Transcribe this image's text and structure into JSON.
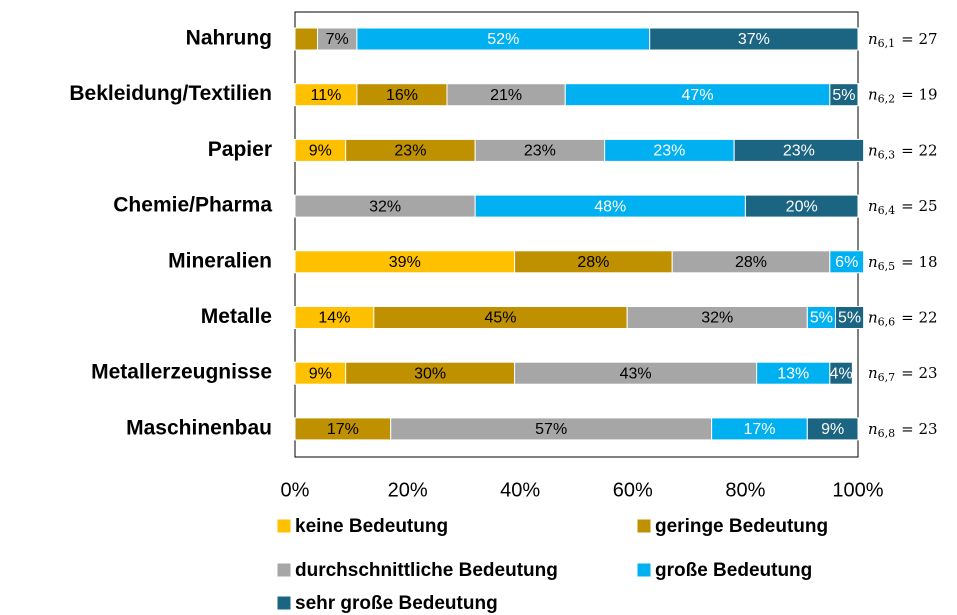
{
  "chart_data": {
    "type": "stacked-bar-horizontal",
    "categories": [
      "Nahrung",
      "Bekleidung/Textilien",
      "Papier",
      "Chemie/Pharma",
      "Mineralien",
      "Metalle",
      "Metallerzeugnisse",
      "Maschinenbau"
    ],
    "series": [
      {
        "name": "keine Bedeutung",
        "color": "#FFC000",
        "values": [
          0,
          11,
          9,
          0,
          39,
          14,
          9,
          0
        ],
        "value_labels": [
          null,
          "11%",
          "9%",
          null,
          "39%",
          "14%",
          "9%",
          null
        ]
      },
      {
        "name": "geringe Bedeutung",
        "color": "#BF9000",
        "values": [
          4,
          16,
          23,
          0,
          28,
          45,
          30,
          17
        ],
        "value_labels": [
          null,
          "16%",
          "23%",
          null,
          "28%",
          "45%",
          "30%",
          "17%"
        ]
      },
      {
        "name": "durchschnittliche Bedeutung",
        "color": "#A6A6A6",
        "values": [
          7,
          21,
          23,
          32,
          28,
          32,
          43,
          57
        ],
        "value_labels": [
          "7%",
          "21%",
          "23%",
          "32%",
          "28%",
          "32%",
          "43%",
          "57%"
        ]
      },
      {
        "name": "große Bedeutung",
        "color": "#00B0F0",
        "values": [
          52,
          47,
          23,
          48,
          6,
          5,
          13,
          17
        ],
        "value_labels": [
          "52%",
          "47%",
          "23%",
          "48%",
          "6%",
          "5%",
          "13%",
          "17%"
        ]
      },
      {
        "name": "sehr große Bedeutung",
        "color": "#1B6482",
        "values": [
          37,
          5,
          23,
          20,
          0,
          5,
          4,
          9
        ],
        "value_labels": [
          "37%",
          "5%",
          "23%",
          "20%",
          null,
          "5%",
          "4%",
          "9%"
        ]
      }
    ],
    "xlim": [
      0,
      100
    ],
    "xticks": [
      {
        "value": 0,
        "label": "0%"
      },
      {
        "value": 20,
        "label": "20%"
      },
      {
        "value": 40,
        "label": "40%"
      },
      {
        "value": 60,
        "label": "60%"
      },
      {
        "value": 80,
        "label": "80%"
      },
      {
        "value": 100,
        "label": "100%"
      }
    ],
    "n_labels": [
      {
        "symbol": "n",
        "sub": "6,1",
        "rest": "= 27"
      },
      {
        "symbol": "n",
        "sub": "6,2",
        "rest": "= 19"
      },
      {
        "symbol": "n",
        "sub": "6,3",
        "rest": "= 22"
      },
      {
        "symbol": "n",
        "sub": "6,4",
        "rest": "= 25"
      },
      {
        "symbol": "n",
        "sub": "6,5",
        "rest": "= 18"
      },
      {
        "symbol": "n",
        "sub": "6,6",
        "rest": "= 22"
      },
      {
        "symbol": "n",
        "sub": "6,7",
        "rest": "= 23"
      },
      {
        "symbol": "n",
        "sub": "6,8",
        "rest": "= 23"
      }
    ],
    "legend": "bottom"
  }
}
